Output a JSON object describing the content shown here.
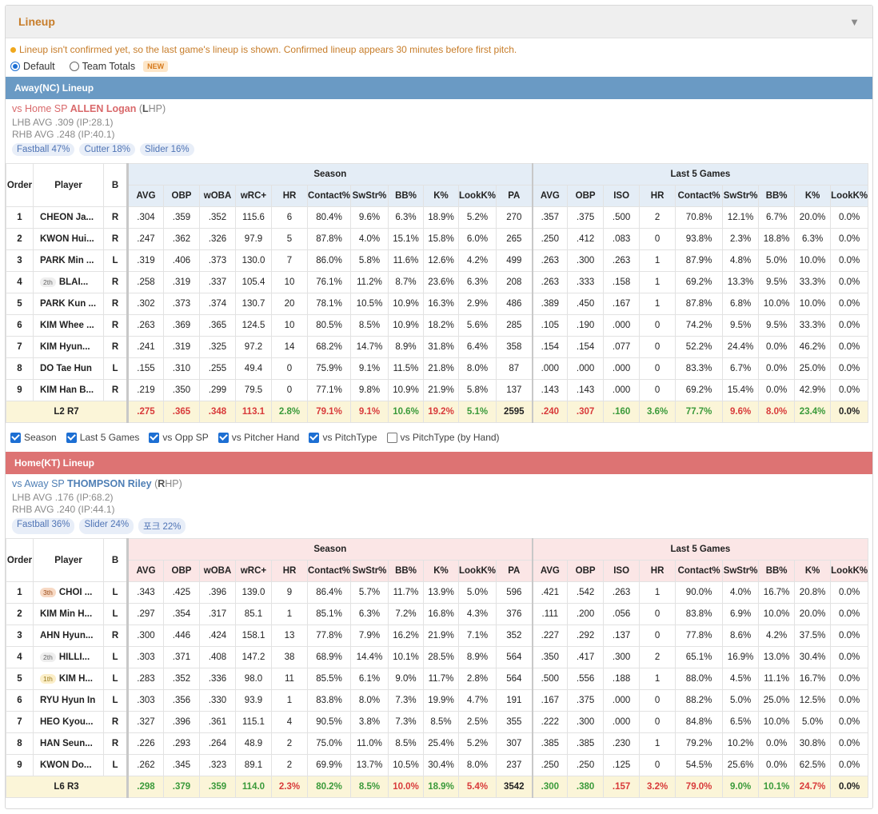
{
  "panel": {
    "title": "Lineup",
    "notice": "Lineup isn't confirmed yet, so the last game's lineup is shown. Confirmed lineup appears 30 minutes before first pitch.",
    "view_options": [
      {
        "label": "Default",
        "selected": true
      },
      {
        "label": "Team Totals",
        "selected": false,
        "badge": "NEW"
      }
    ]
  },
  "column_headers": {
    "order": "Order",
    "player": "Player",
    "bats": "B",
    "season_group": "Season",
    "last5_group": "Last 5 Games",
    "season": [
      "AVG",
      "OBP",
      "wOBA",
      "wRC+",
      "HR",
      "Contact%",
      "SwStr%",
      "BB%",
      "K%",
      "LookK%",
      "PA"
    ],
    "last5": [
      "AVG",
      "OBP",
      "ISO",
      "HR",
      "Contact%",
      "SwStr%",
      "BB%",
      "K%",
      "LookK%"
    ]
  },
  "away": {
    "bar_title": "Away(NC) Lineup",
    "sp_prefix": "vs Home SP ",
    "sp_name": "ALLEN Logan",
    "sp_hand_open": " (",
    "sp_hand_letter": "L",
    "sp_hand_rest": "HP)",
    "lhb_avg": "LHB AVG .309 (IP:28.1)",
    "rhb_avg": "RHB AVG .248 (IP:40.1)",
    "pitches": [
      "Fastball 47%",
      "Cutter 18%",
      "Slider 16%"
    ],
    "rows": [
      {
        "order": "1",
        "badge": "",
        "player": "CHEON Ja...",
        "bats": "R",
        "season": [
          ".304",
          ".359",
          ".352",
          "115.6",
          "6",
          "80.4%",
          "9.6%",
          "6.3%",
          "18.9%",
          "5.2%",
          "270"
        ],
        "last5": [
          ".357",
          ".375",
          ".500",
          "2",
          "70.8%",
          "12.1%",
          "6.7%",
          "20.0%",
          "0.0%"
        ]
      },
      {
        "order": "2",
        "badge": "",
        "player": "KWON Hui...",
        "bats": "R",
        "season": [
          ".247",
          ".362",
          ".326",
          "97.9",
          "5",
          "87.8%",
          "4.0%",
          "15.1%",
          "15.8%",
          "6.0%",
          "265"
        ],
        "last5": [
          ".250",
          ".412",
          ".083",
          "0",
          "93.8%",
          "2.3%",
          "18.8%",
          "6.3%",
          "0.0%"
        ]
      },
      {
        "order": "3",
        "badge": "",
        "player": "PARK Min ...",
        "bats": "L",
        "season": [
          ".319",
          ".406",
          ".373",
          "130.0",
          "7",
          "86.0%",
          "5.8%",
          "11.6%",
          "12.6%",
          "4.2%",
          "499"
        ],
        "last5": [
          ".263",
          ".300",
          ".263",
          "1",
          "87.9%",
          "4.8%",
          "5.0%",
          "10.0%",
          "0.0%"
        ]
      },
      {
        "order": "4",
        "badge": "2th",
        "player": "BLAI...",
        "bats": "R",
        "season": [
          ".258",
          ".319",
          ".337",
          "105.4",
          "10",
          "76.1%",
          "11.2%",
          "8.7%",
          "23.6%",
          "6.3%",
          "208"
        ],
        "last5": [
          ".263",
          ".333",
          ".158",
          "1",
          "69.2%",
          "13.3%",
          "9.5%",
          "33.3%",
          "0.0%"
        ]
      },
      {
        "order": "5",
        "badge": "",
        "player": "PARK Kun ...",
        "bats": "R",
        "season": [
          ".302",
          ".373",
          ".374",
          "130.7",
          "20",
          "78.1%",
          "10.5%",
          "10.9%",
          "16.3%",
          "2.9%",
          "486"
        ],
        "last5": [
          ".389",
          ".450",
          ".167",
          "1",
          "87.8%",
          "6.8%",
          "10.0%",
          "10.0%",
          "0.0%"
        ]
      },
      {
        "order": "6",
        "badge": "",
        "player": "KIM Whee ...",
        "bats": "R",
        "season": [
          ".263",
          ".369",
          ".365",
          "124.5",
          "10",
          "80.5%",
          "8.5%",
          "10.9%",
          "18.2%",
          "5.6%",
          "285"
        ],
        "last5": [
          ".105",
          ".190",
          ".000",
          "0",
          "74.2%",
          "9.5%",
          "9.5%",
          "33.3%",
          "0.0%"
        ]
      },
      {
        "order": "7",
        "badge": "",
        "player": "KIM Hyun...",
        "bats": "R",
        "season": [
          ".241",
          ".319",
          ".325",
          "97.2",
          "14",
          "68.2%",
          "14.7%",
          "8.9%",
          "31.8%",
          "6.4%",
          "358"
        ],
        "last5": [
          ".154",
          ".154",
          ".077",
          "0",
          "52.2%",
          "24.4%",
          "0.0%",
          "46.2%",
          "0.0%"
        ]
      },
      {
        "order": "8",
        "badge": "",
        "player": "DO Tae Hun",
        "bats": "L",
        "season": [
          ".155",
          ".310",
          ".255",
          "49.4",
          "0",
          "75.9%",
          "9.1%",
          "11.5%",
          "21.8%",
          "8.0%",
          "87"
        ],
        "last5": [
          ".000",
          ".000",
          ".000",
          "0",
          "83.3%",
          "6.7%",
          "0.0%",
          "25.0%",
          "0.0%"
        ]
      },
      {
        "order": "9",
        "badge": "",
        "player": "KIM Han B...",
        "bats": "R",
        "season": [
          ".219",
          ".350",
          ".299",
          "79.5",
          "0",
          "77.1%",
          "9.8%",
          "10.9%",
          "21.9%",
          "5.8%",
          "137"
        ],
        "last5": [
          ".143",
          ".143",
          ".000",
          "0",
          "69.2%",
          "15.4%",
          "0.0%",
          "42.9%",
          "0.0%"
        ]
      }
    ],
    "totals": {
      "label": "L2 R7",
      "season": [
        ".275",
        ".365",
        ".348",
        "113.1",
        "2.8%",
        "79.1%",
        "9.1%",
        "10.6%",
        "19.2%",
        "5.1%",
        "2595"
      ],
      "season_tone": [
        "bad",
        "bad",
        "bad",
        "bad",
        "good",
        "bad",
        "bad",
        "good",
        "bad",
        "good",
        "neutral"
      ],
      "last5": [
        ".240",
        ".307",
        ".160",
        "3.6%",
        "77.7%",
        "9.6%",
        "8.0%",
        "23.4%",
        "0.0%"
      ],
      "last5_tone": [
        "bad",
        "bad",
        "good",
        "good",
        "good",
        "bad",
        "bad",
        "good",
        "neutral"
      ]
    }
  },
  "filters": [
    {
      "label": "Season",
      "checked": true
    },
    {
      "label": "Last 5 Games",
      "checked": true
    },
    {
      "label": "vs Opp SP",
      "checked": true
    },
    {
      "label": "vs Pitcher Hand",
      "checked": true
    },
    {
      "label": "vs PitchType",
      "checked": true
    },
    {
      "label": "vs PitchType (by Hand)",
      "checked": false
    }
  ],
  "home": {
    "bar_title": "Home(KT) Lineup",
    "sp_prefix": "vs Away SP ",
    "sp_name": "THOMPSON Riley",
    "sp_hand_open": " (",
    "sp_hand_letter": "R",
    "sp_hand_rest": "HP)",
    "lhb_avg": "LHB AVG .176 (IP:68.2)",
    "rhb_avg": "RHB AVG .240 (IP:44.1)",
    "pitches": [
      "Fastball 36%",
      "Slider 24%",
      "포크 22%"
    ],
    "rows": [
      {
        "order": "1",
        "badge": "3th",
        "player": "CHOI ...",
        "bats": "L",
        "season": [
          ".343",
          ".425",
          ".396",
          "139.0",
          "9",
          "86.4%",
          "5.7%",
          "11.7%",
          "13.9%",
          "5.0%",
          "596"
        ],
        "last5": [
          ".421",
          ".542",
          ".263",
          "1",
          "90.0%",
          "4.0%",
          "16.7%",
          "20.8%",
          "0.0%"
        ]
      },
      {
        "order": "2",
        "badge": "",
        "player": "KIM Min H...",
        "bats": "L",
        "season": [
          ".297",
          ".354",
          ".317",
          "85.1",
          "1",
          "85.1%",
          "6.3%",
          "7.2%",
          "16.8%",
          "4.3%",
          "376"
        ],
        "last5": [
          ".111",
          ".200",
          ".056",
          "0",
          "83.8%",
          "6.9%",
          "10.0%",
          "20.0%",
          "0.0%"
        ]
      },
      {
        "order": "3",
        "badge": "",
        "player": "AHN Hyun...",
        "bats": "R",
        "season": [
          ".300",
          ".446",
          ".424",
          "158.1",
          "13",
          "77.8%",
          "7.9%",
          "16.2%",
          "21.9%",
          "7.1%",
          "352"
        ],
        "last5": [
          ".227",
          ".292",
          ".137",
          "0",
          "77.8%",
          "8.6%",
          "4.2%",
          "37.5%",
          "0.0%"
        ]
      },
      {
        "order": "4",
        "badge": "2th",
        "player": "HILLI...",
        "bats": "L",
        "season": [
          ".303",
          ".371",
          ".408",
          "147.2",
          "38",
          "68.9%",
          "14.4%",
          "10.1%",
          "28.5%",
          "8.9%",
          "564"
        ],
        "last5": [
          ".350",
          ".417",
          ".300",
          "2",
          "65.1%",
          "16.9%",
          "13.0%",
          "30.4%",
          "0.0%"
        ]
      },
      {
        "order": "5",
        "badge": "1th",
        "player": "KIM H...",
        "bats": "L",
        "season": [
          ".283",
          ".352",
          ".336",
          "98.0",
          "11",
          "85.5%",
          "6.1%",
          "9.0%",
          "11.7%",
          "2.8%",
          "564"
        ],
        "last5": [
          ".500",
          ".556",
          ".188",
          "1",
          "88.0%",
          "4.5%",
          "11.1%",
          "16.7%",
          "0.0%"
        ]
      },
      {
        "order": "6",
        "badge": "",
        "player": "RYU Hyun In",
        "bats": "L",
        "season": [
          ".303",
          ".356",
          ".330",
          "93.9",
          "1",
          "83.8%",
          "8.0%",
          "7.3%",
          "19.9%",
          "4.7%",
          "191"
        ],
        "last5": [
          ".167",
          ".375",
          ".000",
          "0",
          "88.2%",
          "5.0%",
          "25.0%",
          "12.5%",
          "0.0%"
        ]
      },
      {
        "order": "7",
        "badge": "",
        "player": "HEO Kyou...",
        "bats": "R",
        "season": [
          ".327",
          ".396",
          ".361",
          "115.1",
          "4",
          "90.5%",
          "3.8%",
          "7.3%",
          "8.5%",
          "2.5%",
          "355"
        ],
        "last5": [
          ".222",
          ".300",
          ".000",
          "0",
          "84.8%",
          "6.5%",
          "10.0%",
          "5.0%",
          "0.0%"
        ]
      },
      {
        "order": "8",
        "badge": "",
        "player": "HAN Seun...",
        "bats": "R",
        "season": [
          ".226",
          ".293",
          ".264",
          "48.9",
          "2",
          "75.0%",
          "11.0%",
          "8.5%",
          "25.4%",
          "5.2%",
          "307"
        ],
        "last5": [
          ".385",
          ".385",
          ".230",
          "1",
          "79.2%",
          "10.2%",
          "0.0%",
          "30.8%",
          "0.0%"
        ]
      },
      {
        "order": "9",
        "badge": "",
        "player": "KWON Do...",
        "bats": "L",
        "season": [
          ".262",
          ".345",
          ".323",
          "89.1",
          "2",
          "69.9%",
          "13.7%",
          "10.5%",
          "30.4%",
          "8.0%",
          "237"
        ],
        "last5": [
          ".250",
          ".250",
          ".125",
          "0",
          "54.5%",
          "25.6%",
          "0.0%",
          "62.5%",
          "0.0%"
        ]
      }
    ],
    "totals": {
      "label": "L6 R3",
      "season": [
        ".298",
        ".379",
        ".359",
        "114.0",
        "2.3%",
        "80.2%",
        "8.5%",
        "10.0%",
        "18.9%",
        "5.4%",
        "3542"
      ],
      "season_tone": [
        "good",
        "good",
        "good",
        "good",
        "bad",
        "good",
        "good",
        "bad",
        "good",
        "bad",
        "neutral"
      ],
      "last5": [
        ".300",
        ".380",
        ".157",
        "3.2%",
        "79.0%",
        "9.0%",
        "10.1%",
        "24.7%",
        "0.0%"
      ],
      "last5_tone": [
        "good",
        "good",
        "bad",
        "bad",
        "bad",
        "good",
        "good",
        "bad",
        "neutral"
      ]
    }
  },
  "colors": {
    "accent": "#c77d2a",
    "away_bar": "#6a9ac4",
    "home_bar": "#dd7373",
    "good": "#3a9a3a",
    "bad": "#d83a3a"
  }
}
